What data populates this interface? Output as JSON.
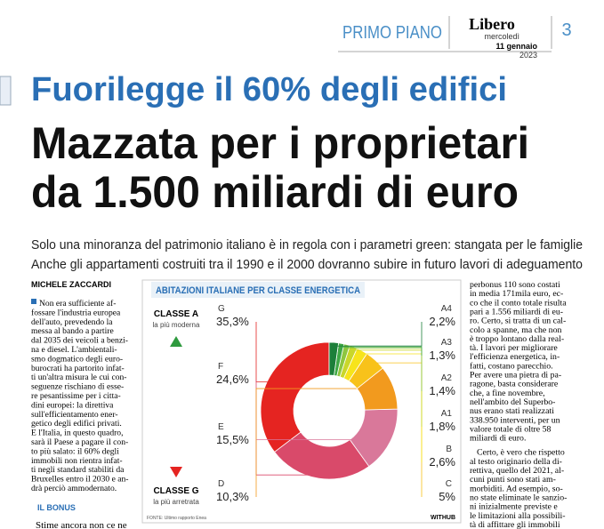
{
  "header": {
    "section": "PRIMO PIANO",
    "logo": "Libero",
    "weekday": "mercoledì",
    "date": "11 gennaio",
    "year": "2023",
    "page": "3"
  },
  "headline": {
    "kicker": "Fuorilegge il 60% degli edifici",
    "lines": [
      "Mazzata per i proprietari",
      "da 1.500 miliardi di euro"
    ]
  },
  "subheadline": [
    "Solo una minoranza del patrimonio italiano è in regola con i parametri green: stangata per le famiglie",
    "Anche gli appartamenti costruiti tra il 1990 e il 2000 dovranno subire in futuro lavori di adeguamento"
  ],
  "article": {
    "author": "MICHELE ZACCARDI",
    "left_column": [
      "Non era sufficiente af-",
      "fossare l'industria europea",
      "dell'auto, prevedendo la",
      "messa al bando a partire",
      "dal 2035 dei veicoli a benzi-",
      "na e diesel. L'ambientali-",
      "smo dogmatico degli euro-",
      "burocrati ha partorito infat-",
      "ti un'altra misura le cui con-",
      "seguenze rischiano di esse-",
      "re pesantissime per i citta-",
      "dini europei: la direttiva",
      "sull'efficientamento ener-",
      "getico degli edifici privati.",
      "E l'Italia, in questo quadro,",
      "sarà il Paese a pagare il con-",
      "to più salato: il 60% degli",
      "immobili non rientra infat-",
      "ti negli standard stabiliti da",
      "Bruxelles entro il 2030 e an-",
      "drà perciò ammodernato."
    ],
    "subhead": "IL BONUS",
    "left_tail": "Stime ancora non ce ne",
    "right_paragraphs": [
      [
        "perbonus 110 sono costati",
        "in media 171mila euro, ec-",
        "co che il conto totale risulta",
        "pari a 1.556 miliardi di eu-",
        "ro. Certo, si tratta di un cal-",
        "colo a spanne, ma che non",
        "è troppo lontano dalla real-",
        "tà. I lavori per migliorare",
        "l'efficienza energetica, in-",
        "fatti, costano parecchio.",
        "Per avere una pietra di pa-",
        "ragone, basta considerare",
        "che, a fine novembre,",
        "nell'ambito del Superbo-",
        "nus erano stati realizzati",
        "338.950 interventi, per un",
        "valore totale di oltre 58",
        "miliardi di euro."
      ],
      [
        "Certo, è vero che rispetto",
        "al testo originario della di-",
        "rettiva, quello del 2021, al-",
        "cuni punti sono stati am-",
        "morbiditi. Ad esempio, so-",
        "no state eliminate le sanzio-",
        "ni inizialmente previste e",
        "le limitazioni alla possibili-",
        "tà di affittare gli immobili"
      ]
    ]
  },
  "chart_data": {
    "type": "pie",
    "donut": true,
    "title": "ABITAZIONI ITALIANE PER CLASSE ENERGETICA",
    "categories": [
      "G",
      "F",
      "E",
      "D",
      "C",
      "B",
      "A1",
      "A2",
      "A3",
      "A4"
    ],
    "values": [
      35.3,
      24.6,
      15.5,
      10.3,
      5,
      2.6,
      1.8,
      1.4,
      1.3,
      2.2
    ],
    "value_labels": [
      "35,3%",
      "24,6%",
      "15,5%",
      "10,3%",
      "5%",
      "2,6%",
      "1,8%",
      "1,4%",
      "1,3%",
      "2,2%"
    ],
    "colors": [
      "#e52421",
      "#d94a6a",
      "#d9789a",
      "#f29a1e",
      "#f8c21a",
      "#f7e41b",
      "#c9d72a",
      "#8dc63f",
      "#3fa845",
      "#1d7f3a"
    ],
    "scale_top": {
      "label": "CLASSE A",
      "note": "la più moderna"
    },
    "scale_bottom": {
      "label": "CLASSE G",
      "note": "la più arretrata"
    },
    "source": "FONTE: Ultimo rapporto Enea",
    "credit": "WITHUB"
  }
}
